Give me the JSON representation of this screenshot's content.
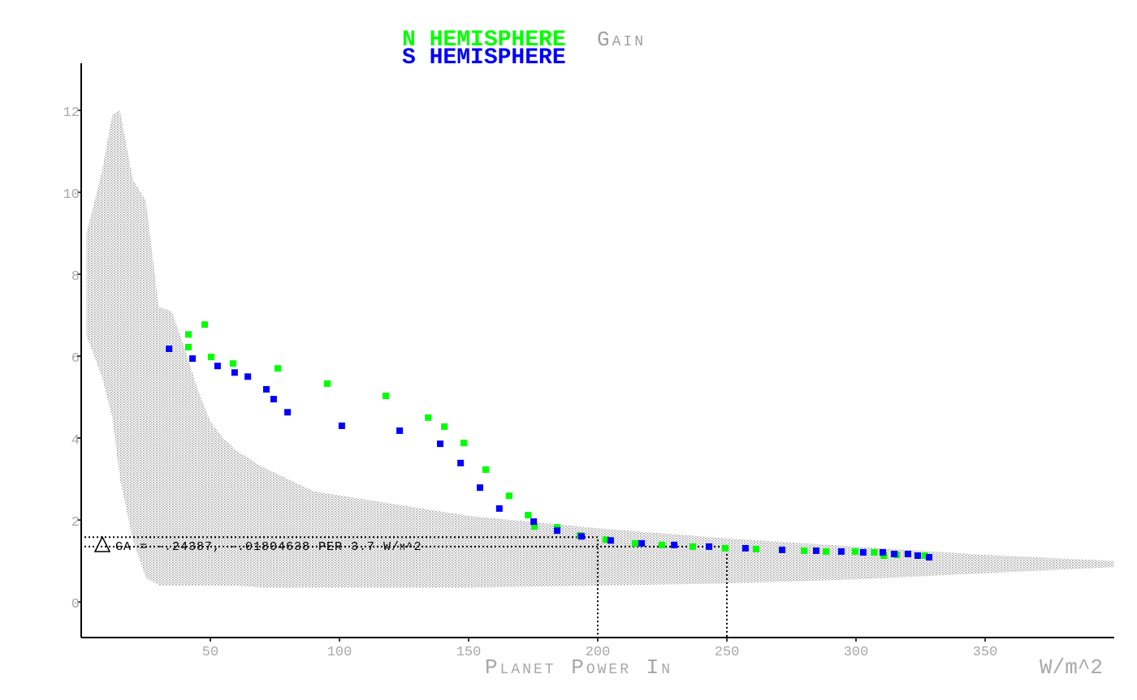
{
  "chart_data": {
    "type": "scatter",
    "x_label": "Planet Power In",
    "x_unit": "W/m^2",
    "annotation": "GA = -.24387, -.01804638 PER 3.7 W/m^2",
    "xlim": [
      0,
      400
    ],
    "ylim": [
      -0.87,
      13.15
    ],
    "xticks": [
      50,
      100,
      150,
      200,
      250,
      300,
      350
    ],
    "yticks": [
      0,
      2,
      4,
      6,
      8,
      10,
      12
    ],
    "reference_lines": [
      {
        "x": 200,
        "y": 1.58
      },
      {
        "x": 250,
        "y": 1.35
      }
    ],
    "series": [
      {
        "name": "Gain",
        "color": "#a0a0a0",
        "kind": "range",
        "x": [
          2,
          8,
          12,
          15,
          20,
          25,
          30,
          35,
          40,
          45,
          50,
          55,
          60,
          70,
          80,
          90,
          100,
          120,
          150,
          200,
          250,
          300,
          350,
          400
        ],
        "upper": [
          9,
          10.5,
          11.9,
          12,
          10.3,
          9.8,
          7.2,
          7.1,
          6.2,
          5.2,
          4.4,
          4.0,
          3.7,
          3.3,
          3.0,
          2.7,
          2.6,
          2.4,
          2.1,
          1.8,
          1.55,
          1.35,
          1.15,
          1.0
        ],
        "lower": [
          6.5,
          5.5,
          4.5,
          3,
          1.5,
          0.6,
          0.4,
          0.4,
          0.4,
          0.4,
          0.4,
          0.4,
          0.4,
          0.35,
          0.35,
          0.35,
          0.35,
          0.35,
          0.35,
          0.4,
          0.45,
          0.55,
          0.7,
          0.85
        ]
      },
      {
        "name": "N HEMISPHERE",
        "color": "#00ff00",
        "x": [
          41.5,
          41.5,
          47.8,
          50.3,
          58.8,
          76.1,
          95.3,
          117.9,
          134.3,
          140.6,
          148.1,
          156.6,
          165.7,
          173.0,
          175.5,
          184.3,
          193.1,
          203.1,
          214.5,
          224.8,
          236.8,
          249.4,
          261.3,
          279.9,
          288.4,
          299.7,
          307,
          310.7,
          315.7,
          326.7
        ],
        "values": [
          6.53,
          6.22,
          6.77,
          5.98,
          5.82,
          5.7,
          5.33,
          5.03,
          4.5,
          4.28,
          3.88,
          3.23,
          2.59,
          2.12,
          1.84,
          1.82,
          1.62,
          1.52,
          1.43,
          1.39,
          1.35,
          1.31,
          1.29,
          1.25,
          1.23,
          1.23,
          1.21,
          1.13,
          1.15,
          1.13
        ]
      },
      {
        "name": "S HEMISPHERE",
        "color": "#0000ff",
        "x": [
          34.0,
          43.1,
          52.8,
          59.4,
          64.5,
          71.7,
          74.5,
          79.9,
          100.9,
          123.3,
          139.0,
          146.9,
          154.4,
          161.9,
          175.2,
          184.3,
          193.7,
          205.0,
          217.0,
          229.6,
          243.1,
          257.2,
          271.4,
          284.6,
          294.3,
          302.8,
          310.4,
          314.8,
          320.1,
          323.9,
          328.3
        ],
        "values": [
          6.18,
          5.94,
          5.76,
          5.6,
          5.5,
          5.19,
          4.95,
          4.63,
          4.3,
          4.18,
          3.86,
          3.39,
          2.79,
          2.28,
          1.96,
          1.74,
          1.6,
          1.5,
          1.43,
          1.39,
          1.35,
          1.31,
          1.27,
          1.25,
          1.23,
          1.21,
          1.21,
          1.17,
          1.17,
          1.13,
          1.09
        ]
      }
    ]
  }
}
